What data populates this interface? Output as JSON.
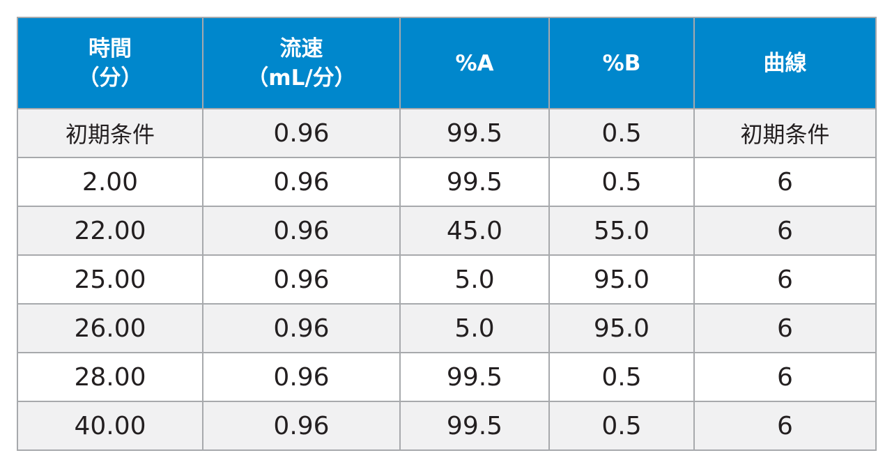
{
  "header": {
    "time_line1": "時間",
    "time_line2": "（分）",
    "flow_line1": "流速",
    "flow_line2": "（mL/分）",
    "pct_a": "%A",
    "pct_b": "%B",
    "curve": "曲線"
  },
  "rows": [
    [
      "初期条件",
      "0.96",
      "99.5",
      "0.5",
      "初期条件"
    ],
    [
      "2.00",
      "0.96",
      "99.5",
      "0.5",
      "6"
    ],
    [
      "22.00",
      "0.96",
      "45.0",
      "55.0",
      "6"
    ],
    [
      "25.00",
      "0.96",
      "5.0",
      "95.0",
      "6"
    ],
    [
      "26.00",
      "0.96",
      "5.0",
      "95.0",
      "6"
    ],
    [
      "28.00",
      "0.96",
      "99.5",
      "0.5",
      "6"
    ],
    [
      "40.00",
      "0.96",
      "99.5",
      "0.5",
      "6"
    ]
  ],
  "colors": {
    "header_bg": "#0087cc",
    "header_text": "#ffffff",
    "row_alt_bg": "#f1f1f2",
    "border": "#a7a9ac"
  }
}
